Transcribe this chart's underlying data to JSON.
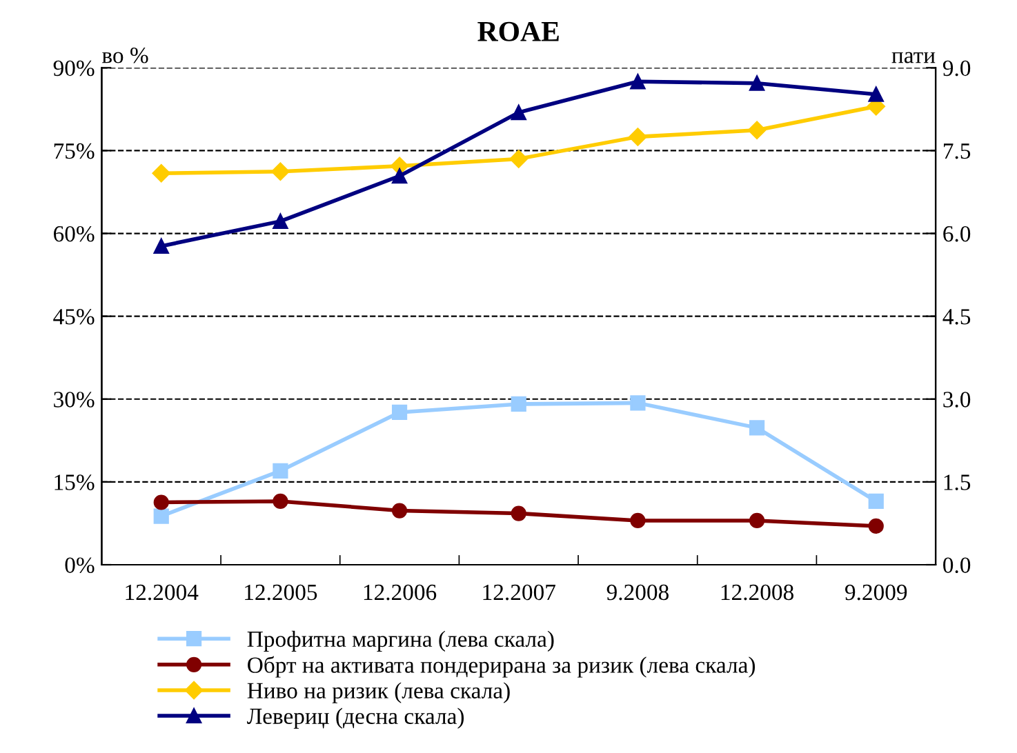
{
  "chart_data": {
    "type": "line",
    "title": "ROAE",
    "ylabel": "во %",
    "y2label": "пати",
    "categories": [
      "12.2004",
      "12.2005",
      "12.2006",
      "12.2007",
      "9.2008",
      "12.2008",
      "9.2009"
    ],
    "series": [
      {
        "name": "Профитна маргина (лева скала)",
        "color": "#99ccff",
        "marker": "square",
        "values": [
          8.8,
          17.0,
          27.6,
          29.1,
          29.3,
          24.8,
          11.5
        ]
      },
      {
        "name": "Обрт на активата пондерирана за ризик (лева скала)",
        "color": "#800000",
        "marker": "circle",
        "values": [
          11.3,
          11.5,
          9.8,
          9.3,
          8.0,
          8.0,
          7.0
        ]
      },
      {
        "name": "Ниво на ризик (лева скала)",
        "color": "#ffcc00",
        "marker": "diamond",
        "values": [
          70.9,
          71.2,
          72.2,
          73.5,
          77.5,
          78.7,
          83.0
        ]
      },
      {
        "name": "Левериџ (десна скала)",
        "color": "#000080",
        "marker": "triangle",
        "axis": "y2",
        "values": [
          5.77,
          6.22,
          7.04,
          8.19,
          8.75,
          8.72,
          8.52
        ]
      }
    ],
    "ylim": [
      0,
      90
    ],
    "yticks": [
      {
        "value": 0,
        "label": "0%"
      },
      {
        "value": 15,
        "label": "15%"
      },
      {
        "value": 30,
        "label": "30%"
      },
      {
        "value": 45,
        "label": "45%"
      },
      {
        "value": 60,
        "label": "60%"
      },
      {
        "value": 75,
        "label": "75%"
      },
      {
        "value": 90,
        "label": "90%"
      }
    ],
    "y2lim": [
      0,
      9
    ],
    "y2ticks": [
      {
        "value": 0,
        "label": "0.0"
      },
      {
        "value": 1.5,
        "label": "1.5"
      },
      {
        "value": 3,
        "label": "3.0"
      },
      {
        "value": 4.5,
        "label": "4.5"
      },
      {
        "value": 6,
        "label": "6.0"
      },
      {
        "value": 7.5,
        "label": "7.5"
      },
      {
        "value": 9,
        "label": "9.0"
      }
    ],
    "grid": "y",
    "legend": "bottom",
    "line_style": "solid"
  }
}
